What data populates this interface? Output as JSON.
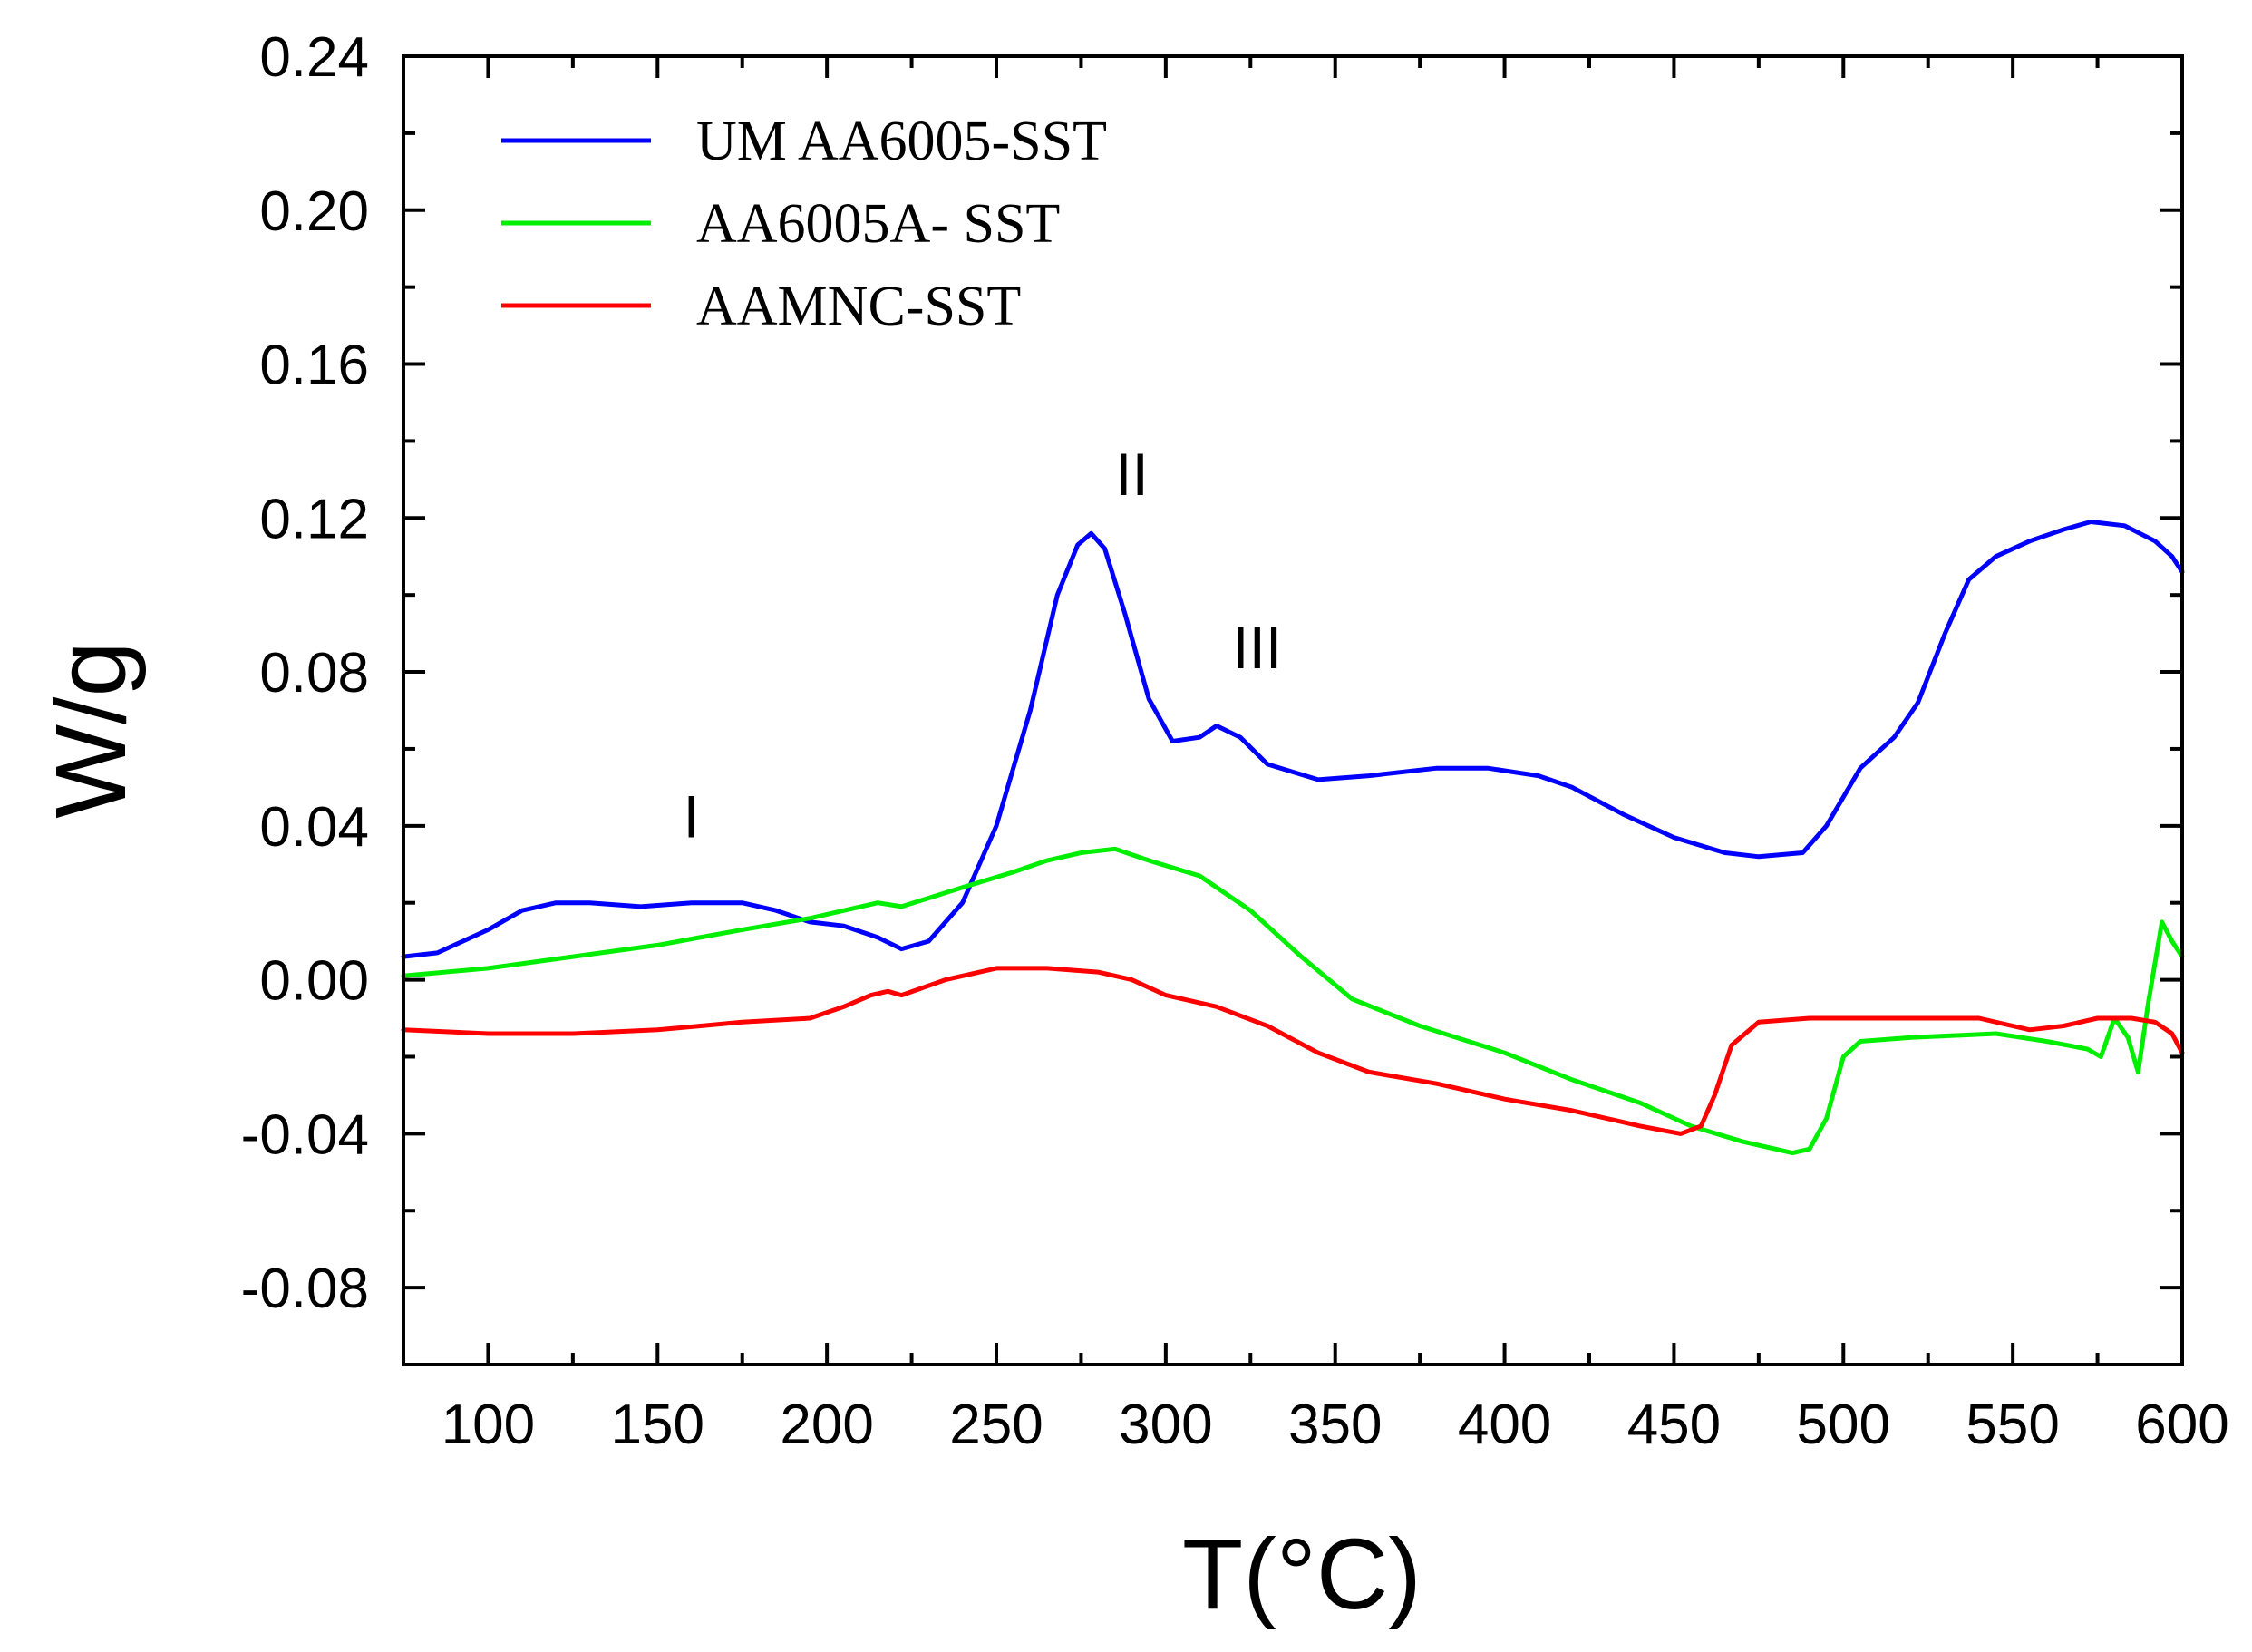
{
  "chart_data": {
    "type": "line",
    "title": "",
    "xlabel": "T(°C)",
    "ylabel": "W/g",
    "xlim": [
      75,
      600
    ],
    "ylim": [
      -0.1,
      0.24
    ],
    "xticks": [
      100,
      150,
      200,
      250,
      300,
      350,
      400,
      450,
      500,
      550,
      600
    ],
    "xtick_labels": [
      "100",
      "150",
      "200",
      "250",
      "300",
      "350",
      "400",
      "450",
      "500",
      "550",
      "600"
    ],
    "yticks": [
      -0.08,
      -0.04,
      0.0,
      0.04,
      0.08,
      0.12,
      0.16,
      0.2,
      0.24
    ],
    "ytick_labels": [
      "-0.08",
      "-0.04",
      "0.00",
      "0.04",
      "0.08",
      "0.12",
      "0.16",
      "0.20",
      "0.24"
    ],
    "grid": false,
    "legend_position": "top-left",
    "series": [
      {
        "name": "UM AA6005-SST",
        "color": "#0000ff",
        "points": [
          [
            75,
            0.006
          ],
          [
            85,
            0.007
          ],
          [
            100,
            0.013
          ],
          [
            110,
            0.018
          ],
          [
            120,
            0.02
          ],
          [
            130,
            0.02
          ],
          [
            145,
            0.019
          ],
          [
            160,
            0.02
          ],
          [
            175,
            0.02
          ],
          [
            185,
            0.018
          ],
          [
            195,
            0.015
          ],
          [
            205,
            0.014
          ],
          [
            215,
            0.011
          ],
          [
            222,
            0.008
          ],
          [
            230,
            0.01
          ],
          [
            240,
            0.02
          ],
          [
            250,
            0.04
          ],
          [
            260,
            0.07
          ],
          [
            268,
            0.1
          ],
          [
            274,
            0.113
          ],
          [
            278,
            0.116
          ],
          [
            282,
            0.112
          ],
          [
            288,
            0.095
          ],
          [
            295,
            0.073
          ],
          [
            302,
            0.062
          ],
          [
            310,
            0.063
          ],
          [
            315,
            0.066
          ],
          [
            322,
            0.063
          ],
          [
            330,
            0.056
          ],
          [
            345,
            0.052
          ],
          [
            360,
            0.053
          ],
          [
            380,
            0.055
          ],
          [
            395,
            0.055
          ],
          [
            410,
            0.053
          ],
          [
            420,
            0.05
          ],
          [
            435,
            0.043
          ],
          [
            450,
            0.037
          ],
          [
            465,
            0.033
          ],
          [
            475,
            0.032
          ],
          [
            488,
            0.033
          ],
          [
            495,
            0.04
          ],
          [
            505,
            0.055
          ],
          [
            515,
            0.063
          ],
          [
            522,
            0.072
          ],
          [
            530,
            0.09
          ],
          [
            537,
            0.104
          ],
          [
            545,
            0.11
          ],
          [
            555,
            0.114
          ],
          [
            565,
            0.117
          ],
          [
            573,
            0.119
          ],
          [
            583,
            0.118
          ],
          [
            592,
            0.114
          ],
          [
            597,
            0.11
          ],
          [
            600,
            0.106
          ]
        ]
      },
      {
        "name": "AA6005A- SST",
        "color": "#00ee00",
        "points": [
          [
            75,
            0.001
          ],
          [
            100,
            0.003
          ],
          [
            125,
            0.006
          ],
          [
            150,
            0.009
          ],
          [
            175,
            0.013
          ],
          [
            195,
            0.016
          ],
          [
            215,
            0.02
          ],
          [
            222,
            0.019
          ],
          [
            240,
            0.024
          ],
          [
            255,
            0.028
          ],
          [
            265,
            0.031
          ],
          [
            275,
            0.033
          ],
          [
            285,
            0.034
          ],
          [
            295,
            0.031
          ],
          [
            310,
            0.027
          ],
          [
            325,
            0.018
          ],
          [
            340,
            0.006
          ],
          [
            355,
            -0.005
          ],
          [
            375,
            -0.012
          ],
          [
            400,
            -0.019
          ],
          [
            420,
            -0.026
          ],
          [
            440,
            -0.032
          ],
          [
            455,
            -0.038
          ],
          [
            470,
            -0.042
          ],
          [
            485,
            -0.045
          ],
          [
            490,
            -0.044
          ],
          [
            495,
            -0.036
          ],
          [
            500,
            -0.02
          ],
          [
            505,
            -0.016
          ],
          [
            520,
            -0.015
          ],
          [
            545,
            -0.014
          ],
          [
            560,
            -0.016
          ],
          [
            572,
            -0.018
          ],
          [
            576,
            -0.02
          ],
          [
            580,
            -0.01
          ],
          [
            584,
            -0.015
          ],
          [
            587,
            -0.024
          ],
          [
            590,
            -0.006
          ],
          [
            594,
            0.015
          ],
          [
            597,
            0.01
          ],
          [
            600,
            0.006
          ]
        ]
      },
      {
        "name": "AAMNC-SST",
        "color": "#ff0000",
        "points": [
          [
            75,
            -0.013
          ],
          [
            100,
            -0.014
          ],
          [
            125,
            -0.014
          ],
          [
            150,
            -0.013
          ],
          [
            175,
            -0.011
          ],
          [
            195,
            -0.01
          ],
          [
            205,
            -0.007
          ],
          [
            213,
            -0.004
          ],
          [
            218,
            -0.003
          ],
          [
            222,
            -0.004
          ],
          [
            235,
            0.0
          ],
          [
            250,
            0.003
          ],
          [
            265,
            0.003
          ],
          [
            280,
            0.002
          ],
          [
            290,
            0.0
          ],
          [
            300,
            -0.004
          ],
          [
            315,
            -0.007
          ],
          [
            330,
            -0.012
          ],
          [
            345,
            -0.019
          ],
          [
            360,
            -0.024
          ],
          [
            380,
            -0.027
          ],
          [
            400,
            -0.031
          ],
          [
            420,
            -0.034
          ],
          [
            440,
            -0.038
          ],
          [
            452,
            -0.04
          ],
          [
            458,
            -0.038
          ],
          [
            462,
            -0.03
          ],
          [
            467,
            -0.017
          ],
          [
            475,
            -0.011
          ],
          [
            490,
            -0.01
          ],
          [
            510,
            -0.01
          ],
          [
            530,
            -0.01
          ],
          [
            540,
            -0.01
          ],
          [
            555,
            -0.013
          ],
          [
            565,
            -0.012
          ],
          [
            575,
            -0.01
          ],
          [
            585,
            -0.01
          ],
          [
            592,
            -0.011
          ],
          [
            597,
            -0.014
          ],
          [
            600,
            -0.019
          ]
        ]
      }
    ],
    "annotations": [
      {
        "text": "I",
        "x": 160,
        "y": 0.037
      },
      {
        "text": "II",
        "x": 290,
        "y": 0.126
      },
      {
        "text": "III",
        "x": 327,
        "y": 0.081
      }
    ]
  }
}
